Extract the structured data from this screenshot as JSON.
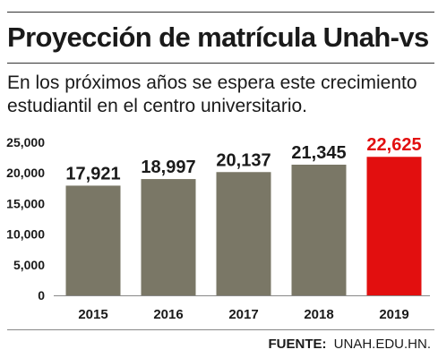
{
  "header": {
    "title": "Proyección de matrícula Unah-vs",
    "subtitle": "En los próximos años se espera este crecimiento estudiantil en el centro universitario."
  },
  "source": {
    "label": "FUENTE:",
    "value": "UNAH.EDU.HN."
  },
  "chart_data": {
    "type": "bar",
    "categories": [
      "2015",
      "2016",
      "2017",
      "2018",
      "2019"
    ],
    "values": [
      17921,
      18997,
      20137,
      21345,
      22625
    ],
    "value_labels": [
      "17,921",
      "18,997",
      "20,137",
      "21,345",
      "22,625"
    ],
    "y_ticks": [
      {
        "value": 25000,
        "label": "25,000"
      },
      {
        "value": 20000,
        "label": "20,000"
      },
      {
        "value": 15000,
        "label": "15,000"
      },
      {
        "value": 10000,
        "label": "10,000"
      },
      {
        "value": 5000,
        "label": "5,000"
      },
      {
        "value": 0,
        "label": "0"
      }
    ],
    "ylim": [
      0,
      25000
    ],
    "grid": false,
    "colors": {
      "bar": "#7a7766",
      "highlight": "#e20f0f",
      "axis": "#888888",
      "text": "#1a1a1a"
    },
    "highlight_index": 4
  }
}
